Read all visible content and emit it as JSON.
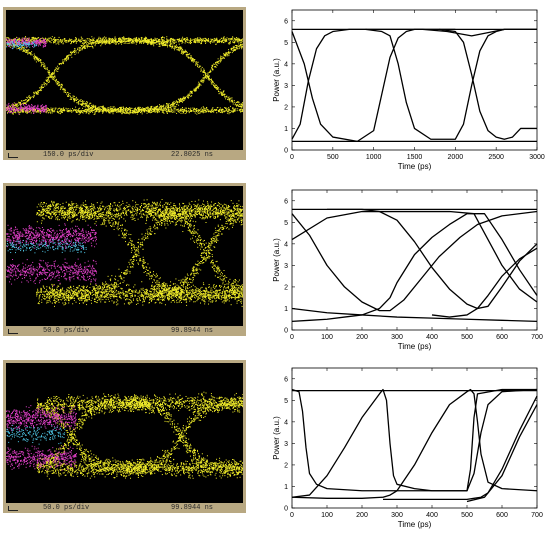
{
  "colors": {
    "scope_bezel": "#b8a882",
    "scope_background": "#000000",
    "eye_trace": "#f2ee2a",
    "trace_magenta": "#e040c8",
    "trace_cyan": "#50c8e8",
    "plot_line": "#000000"
  },
  "oscilloscopes": [
    {
      "timebase": "150.0 ps/div",
      "readout": "22.8025 ns"
    },
    {
      "timebase": "50.0 ps/div",
      "readout": "99.8944 ns"
    },
    {
      "timebase": "50.0 ps/div",
      "readout": "99.8944 ns"
    }
  ],
  "chart_data": [
    {
      "type": "line",
      "xlabel": "Time (ps)",
      "ylabel": "Power (a.u.)",
      "xlim": [
        0,
        3000
      ],
      "ylim": [
        0,
        6.5
      ],
      "xticks": [
        0,
        500,
        1000,
        1500,
        2000,
        2500,
        3000
      ],
      "yticks": [
        0,
        1,
        2,
        3,
        4,
        5,
        6
      ],
      "series": [
        {
          "x": [
            0,
            3000
          ],
          "y": [
            5.6,
            5.6
          ]
        },
        {
          "x": [
            0,
            3000
          ],
          "y": [
            0.4,
            0.4
          ]
        },
        {
          "x": [
            0,
            100,
            200,
            300,
            400,
            500,
            700,
            1000,
            1300,
            1600,
            1900,
            2200,
            2600,
            3000
          ],
          "y": [
            0.5,
            1.2,
            3.2,
            4.7,
            5.3,
            5.5,
            5.6,
            5.6,
            5.6,
            5.6,
            5.5,
            5.3,
            5.6,
            5.6
          ]
        },
        {
          "x": [
            0,
            150,
            250,
            350,
            500,
            800,
            1000,
            1100,
            1200,
            1300,
            1400,
            1500,
            1700,
            2000
          ],
          "y": [
            5.5,
            4.0,
            2.4,
            1.2,
            0.6,
            0.4,
            0.9,
            2.6,
            4.3,
            5.2,
            5.5,
            5.6,
            5.6,
            5.6
          ]
        },
        {
          "x": [
            900,
            1100,
            1200,
            1300,
            1400,
            1500,
            1700,
            2000,
            2100,
            2200,
            2300,
            2400,
            2500,
            2600,
            2800,
            3000
          ],
          "y": [
            5.6,
            5.5,
            5.3,
            4.0,
            2.2,
            1.0,
            0.5,
            0.5,
            1.2,
            3.0,
            4.6,
            5.3,
            5.5,
            5.6,
            5.6,
            5.6
          ]
        },
        {
          "x": [
            1800,
            2000,
            2100,
            2200,
            2300,
            2400,
            2500,
            2600,
            2700,
            2800,
            3000
          ],
          "y": [
            5.6,
            5.5,
            5.0,
            3.5,
            1.8,
            0.9,
            0.6,
            0.5,
            0.6,
            1.0,
            1.0
          ]
        }
      ]
    },
    {
      "type": "line",
      "xlabel": "Time (ps)",
      "ylabel": "Power (a.u.)",
      "xlim": [
        0,
        700
      ],
      "ylim": [
        0,
        6.5
      ],
      "xticks": [
        0,
        100,
        200,
        300,
        400,
        500,
        600,
        700
      ],
      "yticks": [
        0,
        1,
        2,
        3,
        4,
        5,
        6
      ],
      "series": [
        {
          "x": [
            0,
            700
          ],
          "y": [
            5.6,
            5.6
          ]
        },
        {
          "x": [
            0,
            100,
            200,
            300,
            400,
            500,
            600,
            700
          ],
          "y": [
            1.0,
            0.8,
            0.7,
            0.6,
            0.55,
            0.5,
            0.45,
            0.4
          ]
        },
        {
          "x": [
            0,
            100,
            200,
            250,
            300,
            350,
            400,
            450,
            500,
            530,
            560,
            600,
            650,
            700
          ],
          "y": [
            4.2,
            5.2,
            5.5,
            5.5,
            5.1,
            4.1,
            2.9,
            1.9,
            1.2,
            1.0,
            1.1,
            2.0,
            3.2,
            4.0
          ]
        },
        {
          "x": [
            0,
            50,
            100,
            150,
            200,
            250,
            280,
            320,
            380,
            420,
            480,
            530,
            600,
            700
          ],
          "y": [
            5.4,
            4.4,
            3.0,
            2.0,
            1.3,
            0.9,
            0.9,
            1.4,
            2.6,
            3.4,
            4.3,
            4.9,
            5.3,
            5.5
          ]
        },
        {
          "x": [
            0,
            50,
            100,
            150,
            200,
            250,
            280,
            300,
            350,
            400,
            450,
            500,
            550,
            600,
            650,
            700
          ],
          "y": [
            0.4,
            0.45,
            0.5,
            0.6,
            0.7,
            1.0,
            1.5,
            2.2,
            3.5,
            4.3,
            4.9,
            5.4,
            5.4,
            4.2,
            2.8,
            1.6
          ]
        },
        {
          "x": [
            100,
            200,
            250,
            300,
            400,
            450,
            520,
            560,
            600,
            650,
            700
          ],
          "y": [
            5.6,
            5.6,
            5.5,
            5.5,
            5.5,
            5.5,
            5.4,
            4.2,
            3.0,
            1.9,
            1.3
          ]
        },
        {
          "x": [
            400,
            450,
            500,
            530,
            560,
            600,
            650,
            700
          ],
          "y": [
            0.7,
            0.6,
            0.7,
            1.0,
            1.6,
            2.5,
            3.3,
            3.8
          ]
        }
      ]
    },
    {
      "type": "line",
      "xlabel": "Time (ps)",
      "ylabel": "Power (a.u.)",
      "xlim": [
        0,
        700
      ],
      "ylim": [
        0,
        6.5
      ],
      "xticks": [
        0,
        100,
        200,
        300,
        400,
        500,
        600,
        700
      ],
      "yticks": [
        0,
        1,
        2,
        3,
        4,
        5,
        6
      ],
      "series": [
        {
          "x": [
            0,
            700
          ],
          "y": [
            5.45,
            5.45
          ]
        },
        {
          "x": [
            0,
            20,
            30,
            40,
            50,
            70,
            100,
            200,
            260,
            300,
            400,
            500,
            520,
            540,
            560,
            600,
            700
          ],
          "y": [
            5.5,
            5.4,
            4.5,
            2.8,
            1.6,
            1.1,
            0.9,
            0.8,
            0.8,
            0.8,
            0.8,
            0.8,
            1.6,
            3.5,
            4.8,
            5.4,
            5.5
          ]
        },
        {
          "x": [
            0,
            50,
            100,
            150,
            200,
            250,
            260,
            270,
            280,
            290,
            300,
            350,
            400,
            450,
            500,
            510,
            520,
            530,
            600,
            700
          ],
          "y": [
            0.5,
            0.6,
            1.5,
            2.8,
            4.2,
            5.3,
            5.5,
            5.0,
            3.0,
            1.5,
            1.1,
            0.9,
            0.8,
            0.8,
            0.8,
            1.8,
            4.2,
            5.3,
            5.5,
            5.5
          ]
        },
        {
          "x": [
            0,
            100,
            200,
            260,
            280,
            300,
            350,
            400,
            450,
            500,
            510,
            520,
            530,
            540,
            560,
            600,
            700
          ],
          "y": [
            0.5,
            0.45,
            0.45,
            0.5,
            0.6,
            0.8,
            2.0,
            3.5,
            4.8,
            5.4,
            5.5,
            5.3,
            4.0,
            2.5,
            1.2,
            0.9,
            0.8
          ]
        },
        {
          "x": [
            260,
            400,
            500,
            520,
            540,
            560,
            600,
            650,
            700
          ],
          "y": [
            0.4,
            0.4,
            0.4,
            0.45,
            0.5,
            0.7,
            1.8,
            3.6,
            5.2
          ]
        },
        {
          "x": [
            500,
            550,
            600,
            650,
            700
          ],
          "y": [
            0.3,
            0.5,
            1.5,
            3.3,
            4.8
          ]
        }
      ]
    }
  ]
}
